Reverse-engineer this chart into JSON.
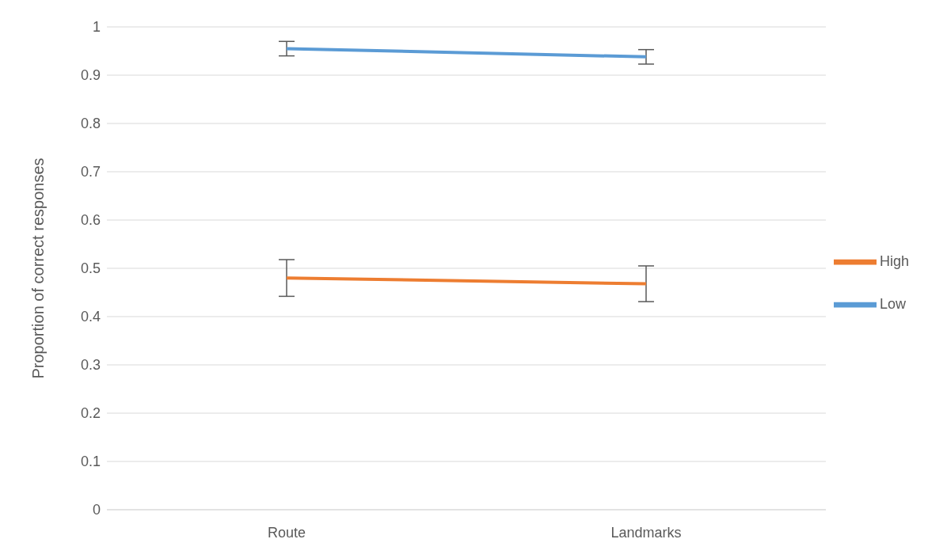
{
  "chart_data": {
    "type": "line",
    "ylabel": "Proportion of correct responses",
    "categories": [
      "Route",
      "Landmarks"
    ],
    "series": [
      {
        "name": "Low",
        "color": "#5b9bd5",
        "values": [
          0.955,
          0.938
        ],
        "errors": [
          0.015,
          0.015
        ]
      },
      {
        "name": "High",
        "color": "#ed7d31",
        "values": [
          0.48,
          0.468
        ],
        "errors": [
          0.038,
          0.037
        ]
      }
    ],
    "ylim": [
      0,
      1
    ],
    "yticks": [
      0,
      0.1,
      0.2,
      0.3,
      0.4,
      0.5,
      0.6,
      0.7,
      0.8,
      0.9,
      1
    ],
    "grid": "y",
    "legend": "right",
    "marker": "none",
    "line_style": "solid"
  }
}
